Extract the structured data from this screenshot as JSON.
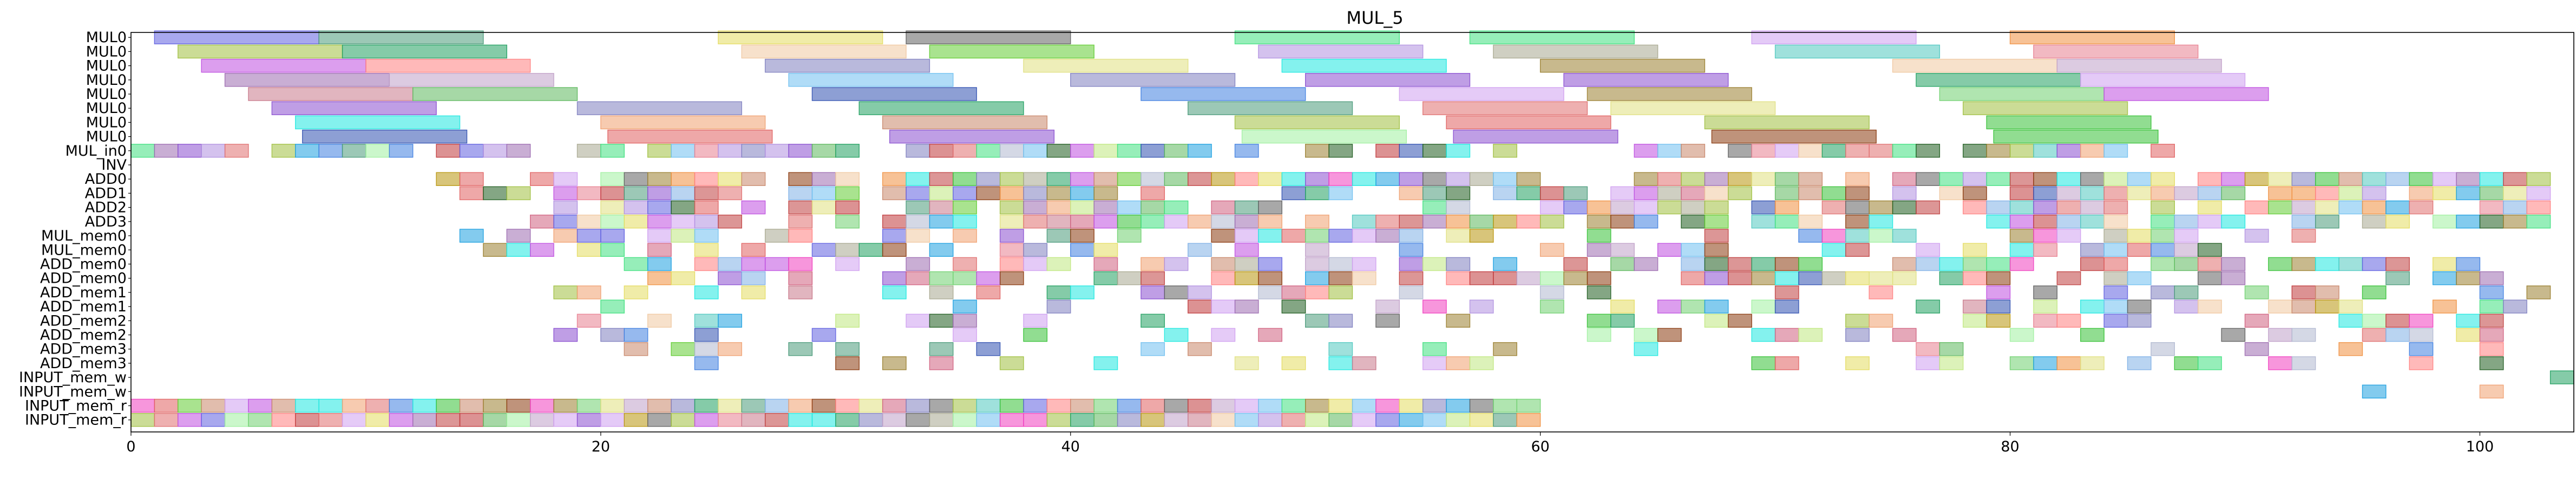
{
  "chart_data": {
    "type": "gantt",
    "title": "MUL_5",
    "xlabel": "",
    "ylabel": "",
    "xlim": [
      0,
      104
    ],
    "xticks": [
      0,
      20,
      40,
      60,
      80,
      100
    ],
    "grid": false,
    "rows": [
      "MUL0",
      "MUL0",
      "MUL0",
      "MUL0",
      "MUL0",
      "MUL0",
      "MUL0",
      "MUL0",
      "MUL_in0",
      "INV",
      "ADD0",
      "ADD1",
      "ADD2",
      "ADD3",
      "MUL_mem0",
      "MUL_mem0",
      "ADD_mem0",
      "ADD_mem0",
      "ADD_mem1",
      "ADD_mem1",
      "ADD_mem2",
      "ADD_mem2",
      "ADD_mem3",
      "ADD_mem3",
      "INPUT_mem_w",
      "INPUT_mem_w",
      "INPUT_mem_r",
      "INPUT_mem_r"
    ],
    "palette": [
      "#c0393b",
      "#8b3a0e",
      "#b8960c",
      "#7fb0e6",
      "#c9876a",
      "#1fe8e0",
      "#1f5c1f",
      "#c8788a",
      "#ce9ef0",
      "#a8a890",
      "#bf4fe0",
      "#e88090",
      "#36c136",
      "#9c6bb0",
      "#4a9a7a",
      "#5db85d",
      "#62cc33",
      "#c0a0c8",
      "#3050b0",
      "#e06060",
      "#8a4fd0",
      "#c0e880",
      "#9a8030",
      "#b0b8d0",
      "#4080e0",
      "#e07070",
      "#1da0e0",
      "#50c8c0",
      "#f0a070",
      "#f040c0",
      "#e4dc60",
      "#6060e0",
      "#40e080",
      "#a0c040",
      "#d06080",
      "#f0c8a0",
      "#70d070",
      "#ff8080",
      "#b090e0",
      "#20a060",
      "#e0e080",
      "#8080c0",
      "#f09040",
      "#c04040",
      "#70c0f0",
      "#a0f0a0",
      "#d0a0f0",
      "#606060"
    ],
    "mul_bars": [
      [
        [
          1,
          8
        ],
        [
          8,
          15
        ],
        [
          25,
          32
        ],
        [
          33,
          40
        ],
        [
          47,
          54
        ],
        [
          57,
          64
        ],
        [
          69,
          76
        ],
        [
          80,
          87
        ]
      ],
      [
        [
          2,
          9
        ],
        [
          9,
          16
        ],
        [
          26,
          33
        ],
        [
          34,
          41
        ],
        [
          48,
          55
        ],
        [
          58,
          65
        ],
        [
          70,
          77
        ],
        [
          81,
          88
        ]
      ],
      [
        [
          3,
          10
        ],
        [
          10,
          17
        ],
        [
          27,
          34
        ],
        [
          38,
          45
        ],
        [
          49,
          56
        ],
        [
          60,
          67
        ],
        [
          75,
          82
        ],
        [
          82,
          89
        ]
      ],
      [
        [
          4,
          11
        ],
        [
          11,
          18
        ],
        [
          28,
          35
        ],
        [
          40,
          47
        ],
        [
          50,
          57
        ],
        [
          61,
          68
        ],
        [
          76,
          83
        ],
        [
          83,
          90
        ]
      ],
      [
        [
          5,
          12
        ],
        [
          12,
          19
        ],
        [
          29,
          36
        ],
        [
          43,
          50
        ],
        [
          54,
          61
        ],
        [
          62,
          69
        ],
        [
          77,
          84
        ],
        [
          84,
          91
        ]
      ],
      [
        [
          6,
          13
        ],
        [
          19,
          26
        ],
        [
          31,
          38
        ],
        [
          45,
          52
        ],
        [
          55,
          62
        ],
        [
          63,
          70
        ],
        [
          78,
          85
        ]
      ],
      [
        [
          7,
          14
        ],
        [
          20,
          27
        ],
        [
          32,
          39
        ],
        [
          47,
          54
        ],
        [
          56,
          63
        ],
        [
          67,
          74
        ],
        [
          79,
          86
        ]
      ]
    ],
    "dense_rows": {
      "MUL_in0": [
        [
          0,
          59
        ],
        [
          64,
          88
        ]
      ],
      "ADD0": [
        [
          13,
          60
        ],
        [
          63,
          103
        ]
      ],
      "ADD1": [
        [
          14,
          45
        ],
        [
          48,
          103
        ]
      ],
      "ADD2": [
        [
          18,
          50
        ],
        [
          54,
          103
        ]
      ],
      "ADD3": [
        [
          17,
          75
        ],
        [
          79,
          103
        ]
      ],
      "MUL_mem0_a": [
        [
          13,
          60
        ],
        [
          62,
          93
        ]
      ],
      "MUL_mem0_b": [
        [
          13,
          55
        ],
        [
          57,
          91
        ]
      ],
      "ADD_mem0_a": [
        [
          20,
          100
        ]
      ],
      "ADD_mem0_b": [
        [
          22,
          102
        ]
      ],
      "ADD_mem1_a": [
        [
          18,
          75
        ],
        [
          76,
          103
        ]
      ],
      "ADD_mem1_b": [
        [
          20,
          72
        ],
        [
          76,
          102
        ]
      ],
      "ADD_mem2_a": [
        [
          19,
          70
        ],
        [
          72,
          103
        ]
      ],
      "ADD_mem2_b": [
        [
          18,
          50
        ],
        [
          62,
          103
        ]
      ],
      "ADD_mem3_a": [
        [
          18,
          68
        ],
        [
          74,
          101
        ]
      ],
      "ADD_mem3_b": [
        [
          24,
          60
        ],
        [
          68,
          103
        ]
      ],
      "INPUT_mem_w_a": [
        [
          90,
          104
        ]
      ],
      "INPUT_mem_w_b": [
        [
          94,
          101
        ]
      ],
      "INPUT_mem_r_a": [
        [
          0,
          60
        ]
      ],
      "INPUT_mem_r_b": [
        [
          0,
          60
        ]
      ]
    },
    "label_colors": {
      "text": "#000000",
      "axis": "#000000"
    }
  }
}
